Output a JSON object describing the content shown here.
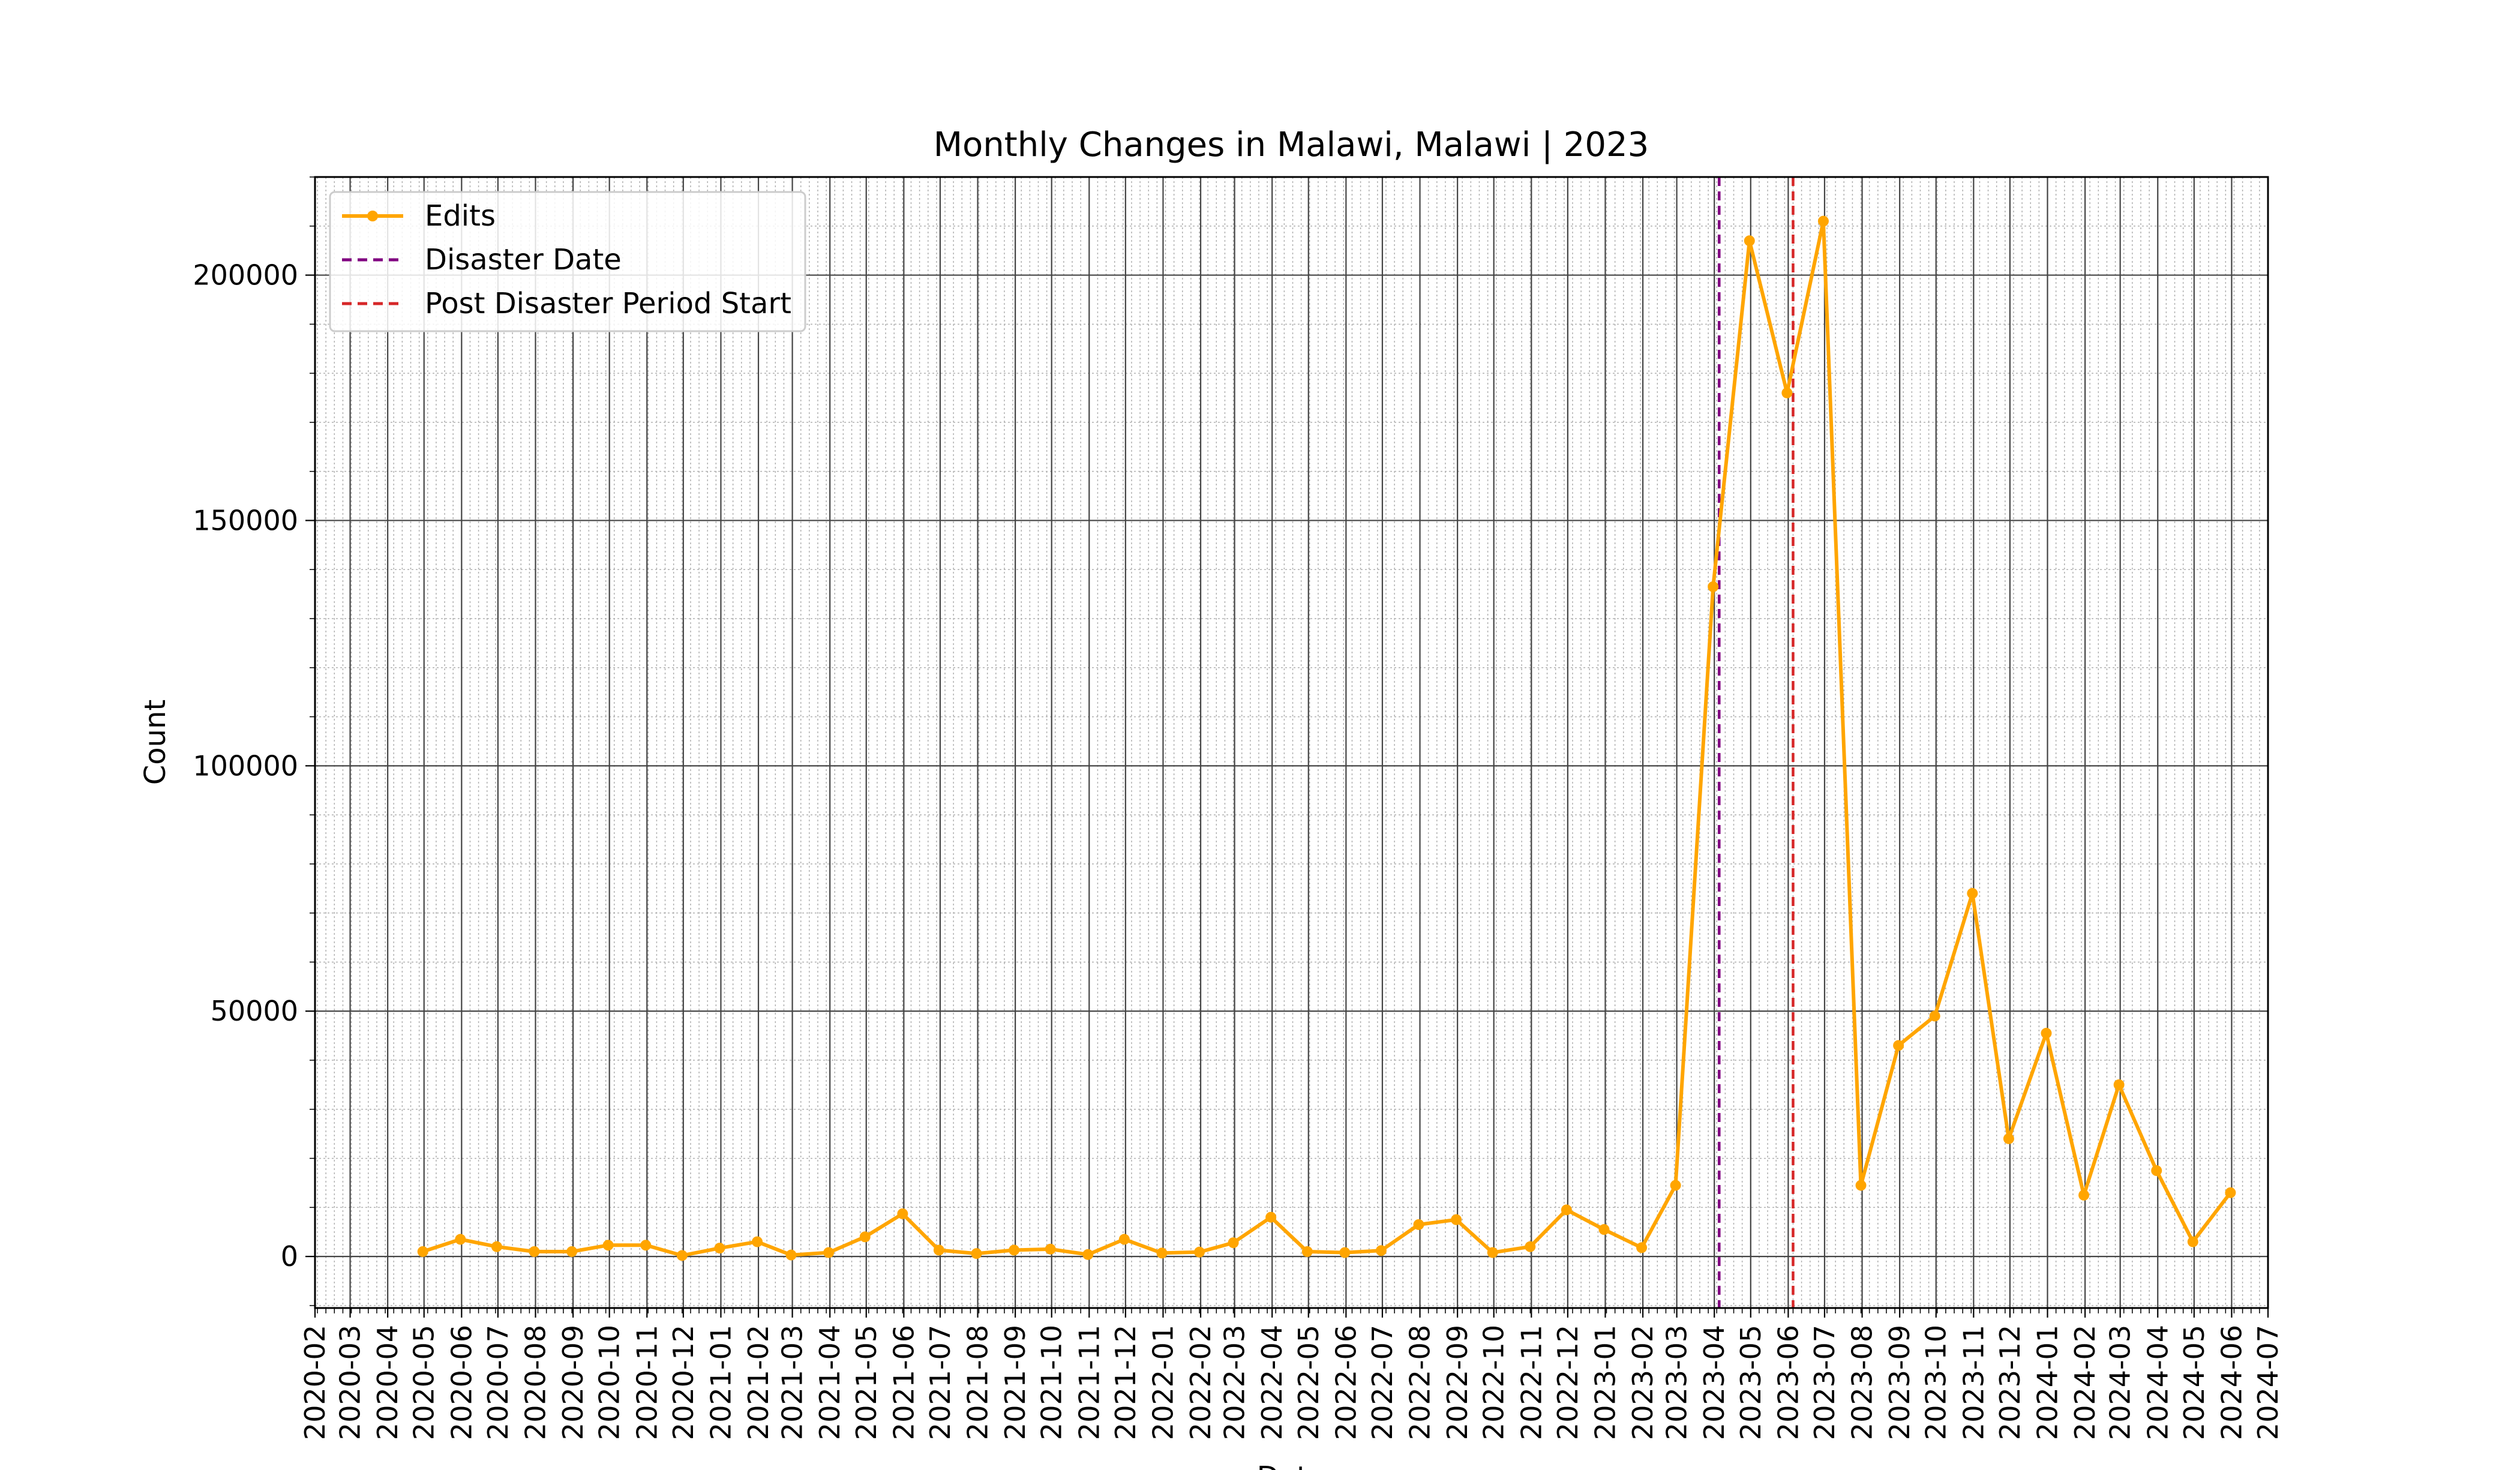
{
  "chart_data": {
    "type": "line",
    "title": "Monthly Changes in Malawi, Malawi | 2023",
    "xlabel": "Date",
    "ylabel": "Count",
    "ylim": [
      -10500,
      220000
    ],
    "yticks": [
      0,
      50000,
      100000,
      150000,
      200000
    ],
    "xlim": [
      "2020-02-01",
      "2024-07-01"
    ],
    "xticks": [
      "2020-02",
      "2020-03",
      "2020-04",
      "2020-05",
      "2020-06",
      "2020-07",
      "2020-08",
      "2020-09",
      "2020-10",
      "2020-11",
      "2020-12",
      "2021-01",
      "2021-02",
      "2021-03",
      "2021-04",
      "2021-05",
      "2021-06",
      "2021-07",
      "2021-08",
      "2021-09",
      "2021-10",
      "2021-11",
      "2021-12",
      "2022-01",
      "2022-02",
      "2022-03",
      "2022-04",
      "2022-05",
      "2022-06",
      "2022-07",
      "2022-08",
      "2022-09",
      "2022-10",
      "2022-11",
      "2022-12",
      "2023-01",
      "2023-02",
      "2023-03",
      "2023-04",
      "2023-05",
      "2023-06",
      "2023-07",
      "2023-08",
      "2023-09",
      "2023-10",
      "2023-11",
      "2023-12",
      "2024-01",
      "2024-02",
      "2024-03",
      "2024-04",
      "2024-05",
      "2024-06",
      "2024-07"
    ],
    "grid": true,
    "legend_position": "upper-left",
    "series": [
      {
        "name": "Edits",
        "color": "#FFA500",
        "x": [
          "2020-04-30",
          "2020-05-31",
          "2020-06-30",
          "2020-07-31",
          "2020-08-31",
          "2020-09-30",
          "2020-10-31",
          "2020-11-30",
          "2020-12-31",
          "2021-01-31",
          "2021-02-28",
          "2021-03-31",
          "2021-04-30",
          "2021-05-31",
          "2021-06-30",
          "2021-07-31",
          "2021-08-31",
          "2021-09-30",
          "2021-10-31",
          "2021-11-30",
          "2021-12-31",
          "2022-01-31",
          "2022-02-28",
          "2022-03-31",
          "2022-04-30",
          "2022-05-31",
          "2022-06-30",
          "2022-07-31",
          "2022-08-31",
          "2022-09-30",
          "2022-10-31",
          "2022-11-30",
          "2022-12-31",
          "2023-01-31",
          "2023-02-28",
          "2023-03-31",
          "2023-04-30",
          "2023-05-31",
          "2023-06-30",
          "2023-07-31",
          "2023-08-31",
          "2023-09-30",
          "2023-10-31",
          "2023-11-30",
          "2023-12-31",
          "2024-01-31",
          "2024-02-29",
          "2024-03-31",
          "2024-04-30",
          "2024-05-31"
        ],
        "values": [
          1000,
          3500,
          2000,
          1000,
          1000,
          2300,
          2300,
          200,
          1700,
          3000,
          300,
          800,
          4000,
          8700,
          1300,
          600,
          1300,
          1500,
          400,
          3500,
          700,
          900,
          2800,
          8000,
          1000,
          800,
          1200,
          6500,
          7500,
          800,
          2000,
          9500,
          5500,
          1800,
          14500,
          136500,
          207000,
          176000,
          211000,
          14500,
          43000,
          49000,
          74000,
          24000,
          45500,
          12500,
          35000,
          17500,
          3000,
          13000
        ]
      }
    ],
    "vlines": [
      {
        "name": "Disaster Date",
        "x": "2023-04-05",
        "color": "#800080",
        "style": "dashed"
      },
      {
        "name": "Post Disaster Period Start",
        "x": "2023-06-05",
        "color": "#D62728",
        "style": "dashed"
      }
    ]
  }
}
